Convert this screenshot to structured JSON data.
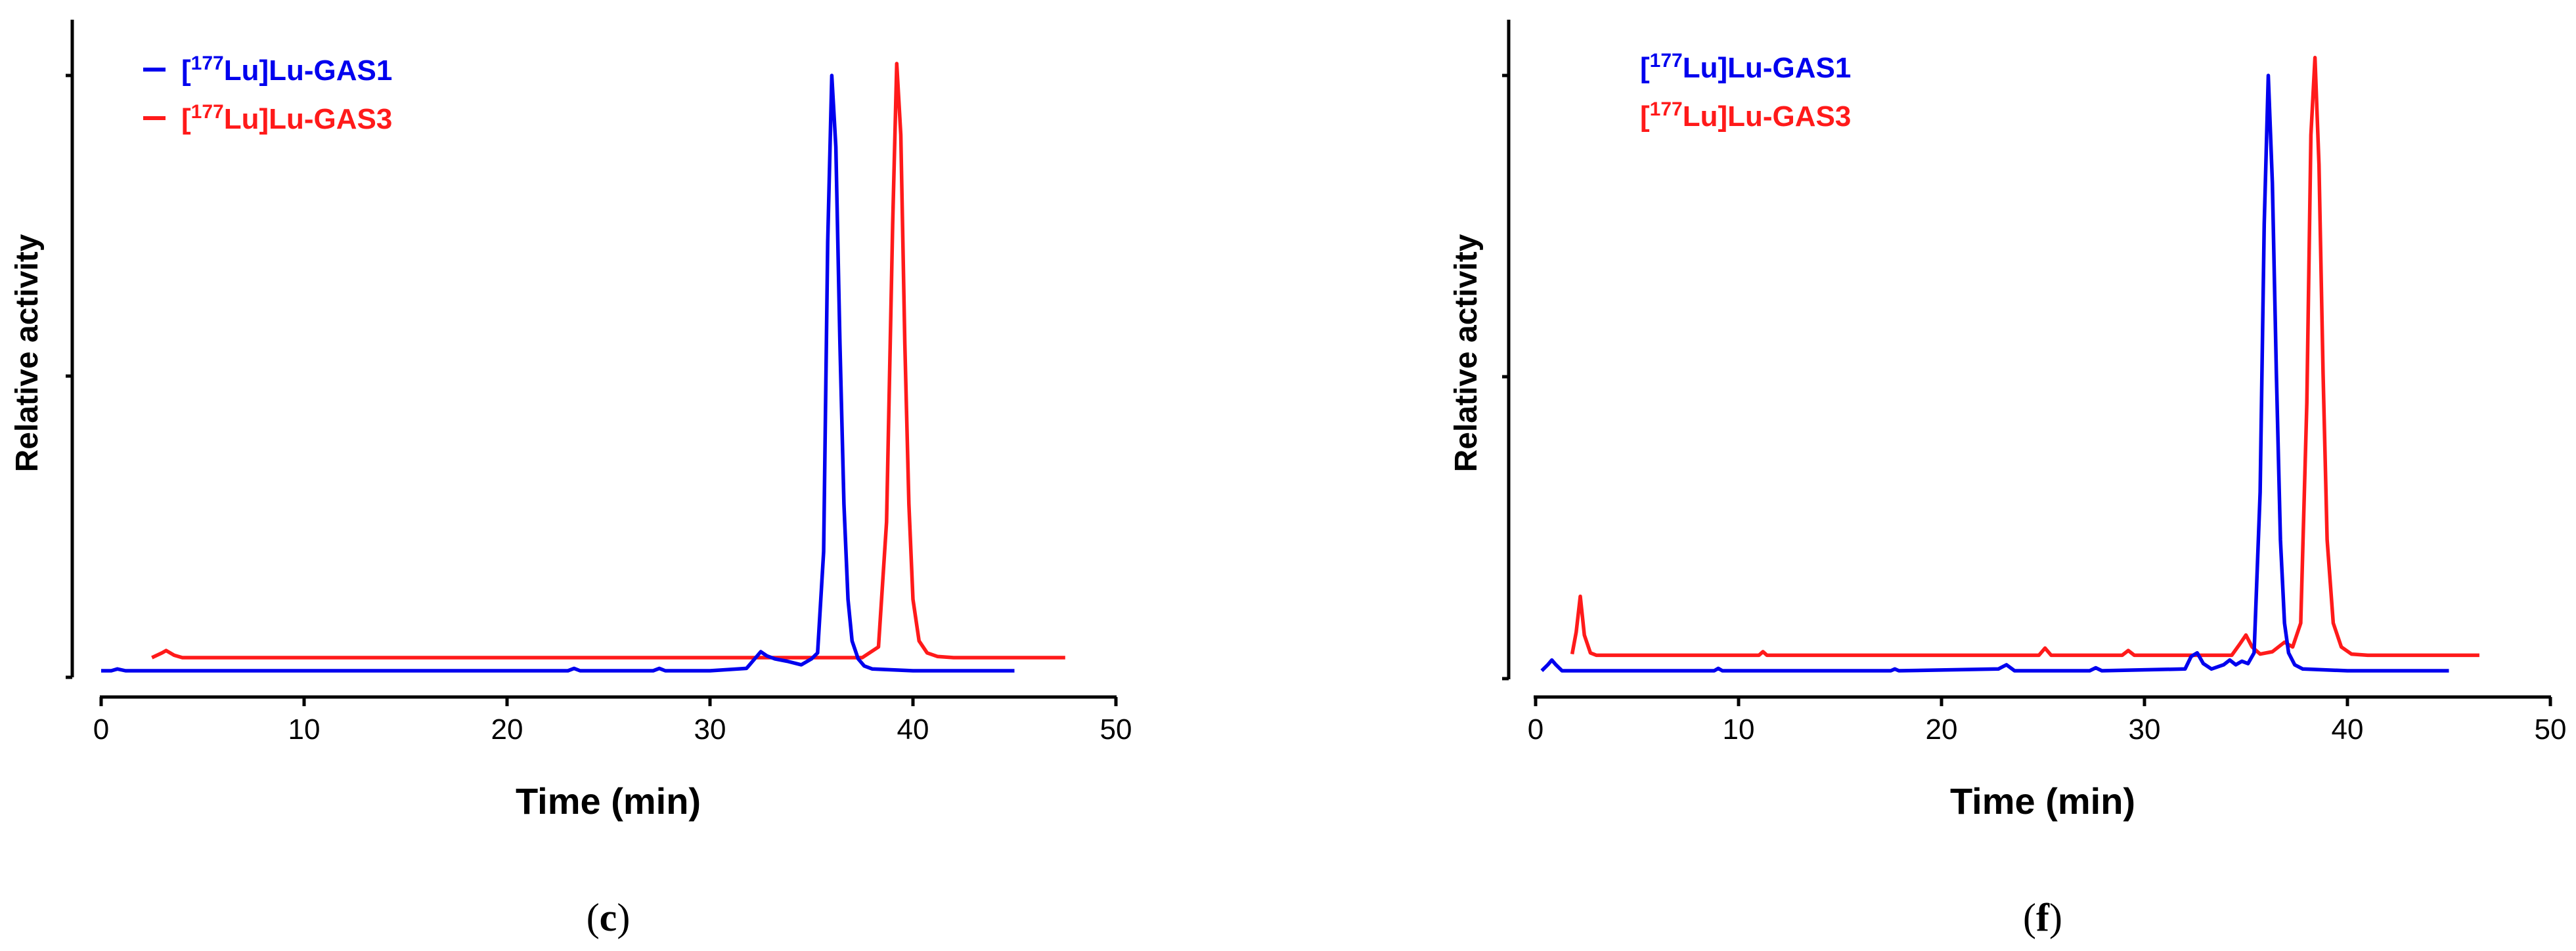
{
  "chart_data": [
    {
      "type": "line",
      "panel_label": {
        "open": "(",
        "letter": "c",
        "close": ")"
      },
      "xlabel": "Time (min)",
      "ylabel": "Relative activity",
      "xlim": [
        0,
        50
      ],
      "xticks": [
        "0",
        "10",
        "20",
        "30",
        "40",
        "50"
      ],
      "ylim": [
        0,
        1.05
      ],
      "legend_position": "top-left",
      "series": [
        {
          "name": "[177Lu]Lu-GAS1",
          "legend": {
            "open": "[",
            "sup": "177",
            "rest": "Lu]Lu-GAS1"
          },
          "color": "#0000ee",
          "x": [
            0,
            0.5,
            0.8,
            1.2,
            5,
            10,
            15,
            20,
            23.0,
            23.3,
            23.6,
            26,
            27.2,
            27.5,
            27.8,
            30,
            31.8,
            32.2,
            32.5,
            32.8,
            33.2,
            33.8,
            34.5,
            35.0,
            35.3,
            35.6,
            35.8,
            36.0,
            36.2,
            36.4,
            36.6,
            36.8,
            37.0,
            37.3,
            37.6,
            38.0,
            40,
            42,
            45
          ],
          "y": [
            0.0,
            0.0,
            0.003,
            0.0,
            0.0,
            0.0,
            0.0,
            0.0,
            0.0,
            0.004,
            0.0,
            0.0,
            0.0,
            0.004,
            0.0,
            0.0,
            0.004,
            0.02,
            0.032,
            0.025,
            0.02,
            0.016,
            0.01,
            0.02,
            0.03,
            0.2,
            0.72,
            1.0,
            0.88,
            0.55,
            0.28,
            0.12,
            0.05,
            0.02,
            0.008,
            0.003,
            0.0,
            0.0,
            0.0
          ]
        },
        {
          "name": "[177Lu]Lu-GAS3",
          "legend": {
            "open": "[",
            "sup": "177",
            "rest": "Lu]Lu-GAS3"
          },
          "color": "#ff1a1a",
          "x": [
            2.5,
            3.0,
            3.2,
            3.6,
            4.0,
            10,
            20,
            30,
            35,
            37.5,
            38.3,
            38.7,
            39.0,
            39.2,
            39.4,
            39.6,
            39.8,
            40.0,
            40.3,
            40.7,
            41.2,
            42,
            45,
            47.5
          ],
          "y": [
            0.022,
            0.03,
            0.034,
            0.026,
            0.022,
            0.022,
            0.022,
            0.022,
            0.022,
            0.022,
            0.04,
            0.25,
            0.75,
            1.02,
            0.9,
            0.55,
            0.28,
            0.12,
            0.05,
            0.03,
            0.024,
            0.022,
            0.022,
            0.022
          ]
        }
      ]
    },
    {
      "type": "line",
      "panel_label": {
        "open": "(",
        "letter": "f",
        "close": ")"
      },
      "xlabel": "Time (min)",
      "ylabel": "Relative activity",
      "xlim": [
        0,
        50
      ],
      "xticks": [
        "0",
        "10",
        "20",
        "30",
        "40",
        "50"
      ],
      "ylim": [
        0,
        1.05
      ],
      "legend_position": "top-center",
      "series": [
        {
          "name": "[177Lu]Lu-GAS1",
          "legend": {
            "open": "[",
            "sup": "177",
            "rest": "Lu]Lu-GAS1"
          },
          "color": "#0000ee",
          "x": [
            0.3,
            0.6,
            0.8,
            1.0,
            1.3,
            5,
            8.8,
            9.0,
            9.2,
            15,
            17.5,
            17.7,
            17.9,
            22.8,
            23.2,
            23.6,
            27.3,
            27.6,
            27.9,
            32.0,
            32.3,
            32.6,
            32.9,
            33.3,
            33.9,
            34.2,
            34.5,
            34.8,
            35.1,
            35.4,
            35.7,
            35.9,
            36.1,
            36.3,
            36.5,
            36.7,
            36.9,
            37.1,
            37.4,
            37.8,
            40,
            42,
            45
          ],
          "y": [
            0.0,
            0.01,
            0.018,
            0.01,
            0.0,
            0.0,
            0.0,
            0.004,
            0.0,
            0.0,
            0.0,
            0.003,
            0.0,
            0.003,
            0.01,
            0.0,
            0.0,
            0.005,
            0.0,
            0.003,
            0.024,
            0.03,
            0.012,
            0.003,
            0.01,
            0.018,
            0.01,
            0.016,
            0.012,
            0.03,
            0.3,
            0.75,
            1.0,
            0.82,
            0.5,
            0.22,
            0.08,
            0.03,
            0.01,
            0.003,
            0.0,
            0.0,
            0.0
          ]
        },
        {
          "name": "[177Lu]Lu-GAS3",
          "legend": {
            "open": "[",
            "sup": "177",
            "rest": "Lu]Lu-GAS3"
          },
          "color": "#ff1a1a",
          "x": [
            1.8,
            2.0,
            2.2,
            2.4,
            2.7,
            3.0,
            10,
            11.0,
            11.2,
            11.4,
            20,
            24.8,
            25.1,
            25.4,
            28.9,
            29.2,
            29.5,
            34.3,
            34.7,
            35.0,
            35.3,
            35.7,
            36.3,
            36.9,
            37.3,
            37.7,
            38.0,
            38.2,
            38.4,
            38.6,
            38.8,
            39.0,
            39.3,
            39.7,
            40.2,
            41,
            45,
            46.5
          ],
          "y": [
            0.028,
            0.065,
            0.125,
            0.06,
            0.03,
            0.026,
            0.026,
            0.026,
            0.032,
            0.026,
            0.026,
            0.026,
            0.038,
            0.026,
            0.026,
            0.034,
            0.026,
            0.026,
            0.045,
            0.06,
            0.04,
            0.028,
            0.032,
            0.048,
            0.04,
            0.08,
            0.45,
            0.9,
            1.03,
            0.85,
            0.5,
            0.22,
            0.08,
            0.04,
            0.028,
            0.026,
            0.026,
            0.026
          ]
        }
      ]
    }
  ]
}
